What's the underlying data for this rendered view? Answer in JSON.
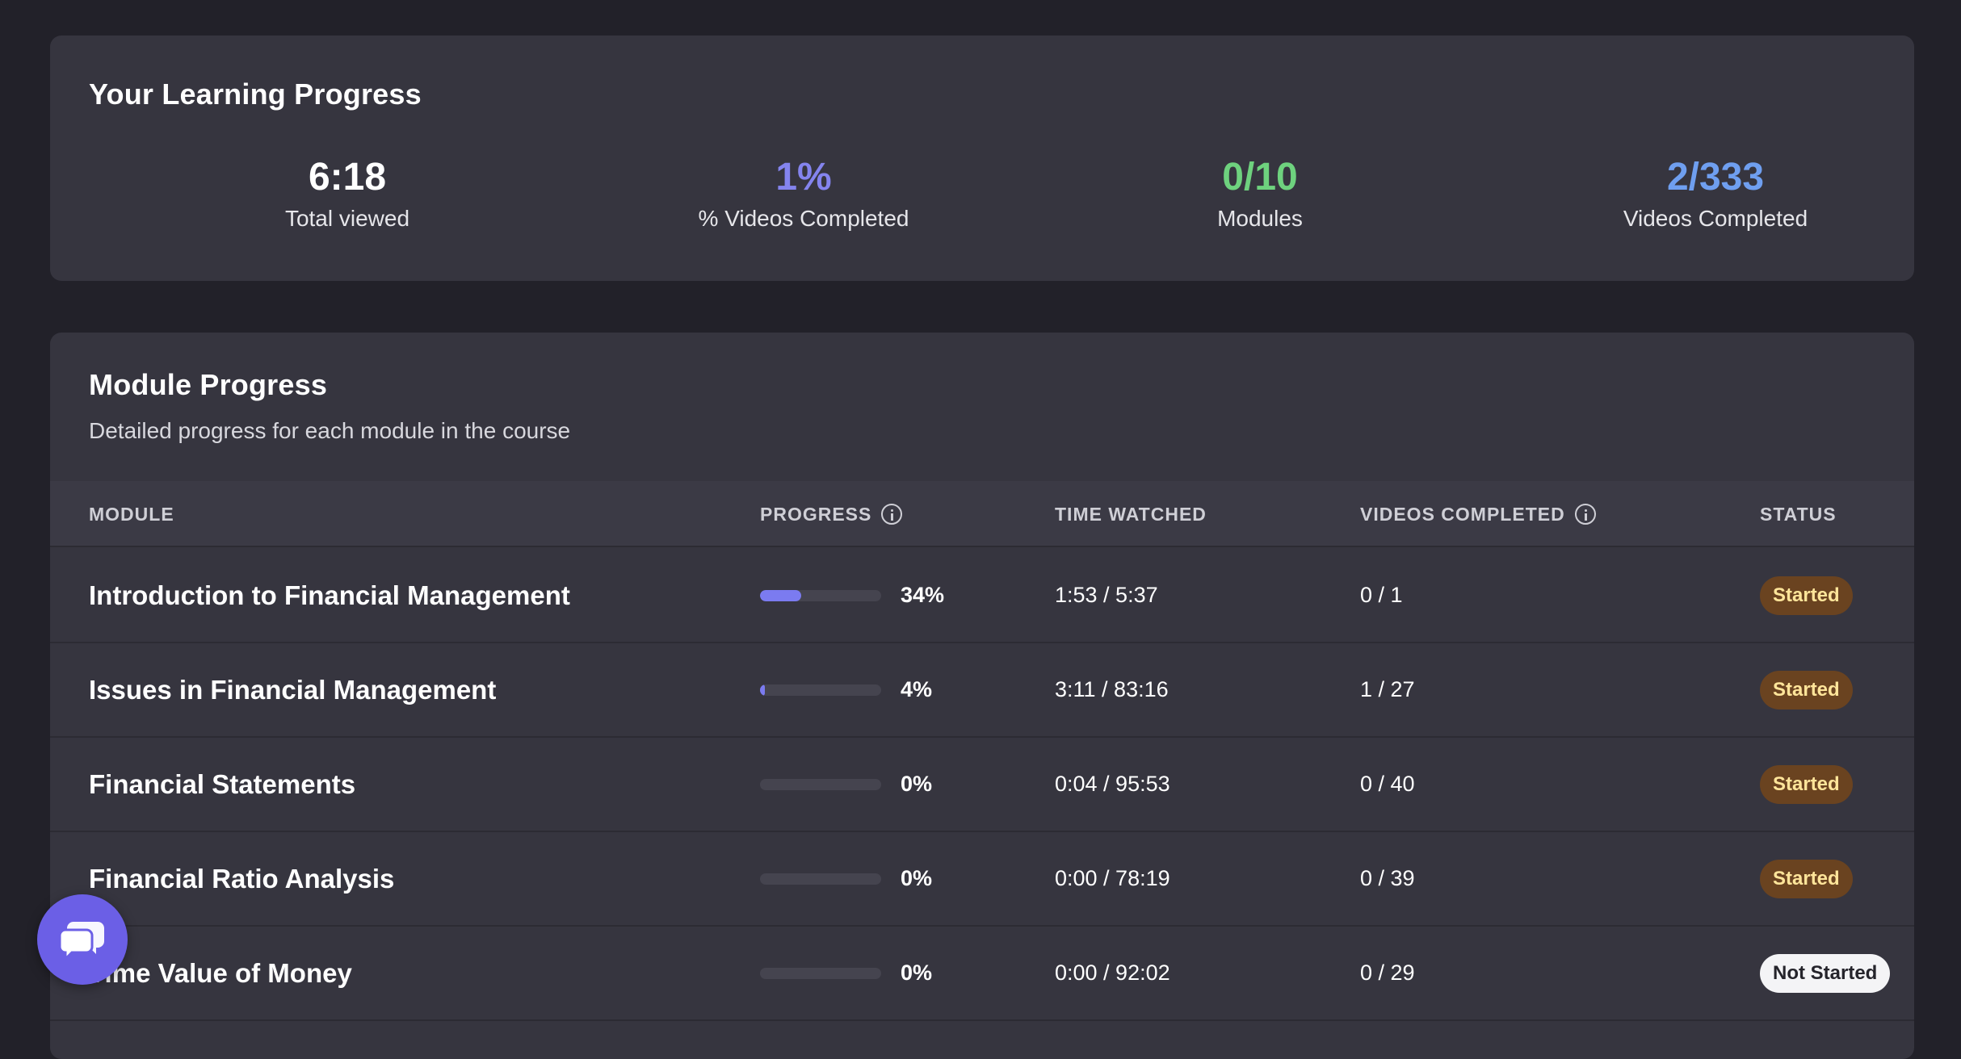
{
  "progress": {
    "title": "Your Learning Progress",
    "stats": [
      {
        "value": "6:18",
        "label": "Total viewed",
        "color": "#ffffff"
      },
      {
        "value": "1%",
        "label": "% Videos Completed",
        "color": "#8484ee"
      },
      {
        "value": "0/10",
        "label": "Modules",
        "color": "#6ed27e"
      },
      {
        "value": "2/333",
        "label": "Videos Completed",
        "color": "#6f9ff0"
      }
    ]
  },
  "modules": {
    "title": "Module Progress",
    "subtitle": "Detailed progress for each module in the course",
    "columns": {
      "module": "MODULE",
      "progress": "PROGRESS",
      "time_watched": "TIME WATCHED",
      "videos_completed": "VIDEOS COMPLETED",
      "status": "STATUS"
    },
    "rows": [
      {
        "name": "Introduction to Financial Management",
        "progress_pct": 34,
        "progress_label": "34%",
        "time": "1:53  /  5:37",
        "videos": "0  /  1",
        "status": "Started",
        "status_type": "started"
      },
      {
        "name": "Issues in Financial Management",
        "progress_pct": 4,
        "progress_label": "4%",
        "time": "3:11  /  83:16",
        "videos": "1  /  27",
        "status": "Started",
        "status_type": "started"
      },
      {
        "name": "Financial Statements",
        "progress_pct": 0,
        "progress_label": "0%",
        "time": "0:04  /  95:53",
        "videos": "0  /  40",
        "status": "Started",
        "status_type": "started"
      },
      {
        "name": "Financial Ratio Analysis",
        "progress_pct": 0,
        "progress_label": "0%",
        "time": "0:00  /  78:19",
        "videos": "0  /  39",
        "status": "Started",
        "status_type": "started"
      },
      {
        "name": "Time Value of Money",
        "progress_pct": 0,
        "progress_label": "0%",
        "time": "0:00  /  92:02",
        "videos": "0  /  29",
        "status": "Not Started",
        "status_type": "not-started"
      }
    ]
  },
  "chat": {
    "icon": "chat-bubbles-icon",
    "color": "#6b5fe6"
  }
}
